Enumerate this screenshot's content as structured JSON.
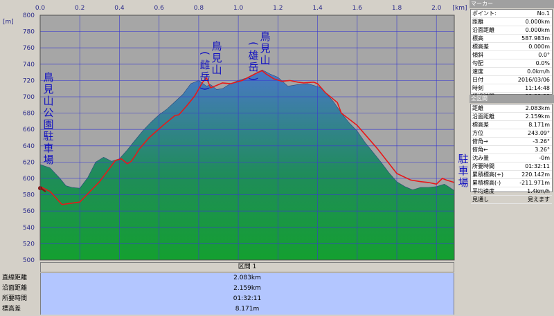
{
  "colors": {
    "plot_bg": "#a6a6a6",
    "grid": "#3a3ad0",
    "fill_top": "#4a78c8",
    "fill_bottom": "#14a030",
    "track": "#e81818",
    "label_text": "#1010c0",
    "stats_bg": "#b3c6ff"
  },
  "chart_data": {
    "type": "area",
    "xlabel": "",
    "ylabel": "",
    "x_unit": "[km]",
    "y_unit": "[m]",
    "xlim": [
      0,
      2.09
    ],
    "ylim": [
      500,
      800
    ],
    "x_ticks": [
      "0.0",
      "0.2",
      "0.4",
      "0.6",
      "0.8",
      "1.0",
      "1.2",
      "1.4",
      "1.6",
      "1.8",
      "2.0"
    ],
    "y_ticks": [
      "500",
      "520",
      "540",
      "560",
      "580",
      "600",
      "620",
      "640",
      "660",
      "680",
      "700",
      "720",
      "740",
      "760",
      "780",
      "800"
    ],
    "grid": true,
    "series": [
      {
        "type": "area",
        "x": [
          0,
          0.05,
          0.1,
          0.13,
          0.16,
          0.2,
          0.24,
          0.28,
          0.32,
          0.36,
          0.4,
          0.44,
          0.48,
          0.52,
          0.56,
          0.6,
          0.64,
          0.68,
          0.72,
          0.76,
          0.8,
          0.84,
          0.86,
          0.89,
          0.92,
          0.96,
          1.0,
          1.04,
          1.08,
          1.12,
          1.16,
          1.2,
          1.25,
          1.3,
          1.35,
          1.38,
          1.42,
          1.48,
          1.52,
          1.56,
          1.6,
          1.64,
          1.68,
          1.72,
          1.76,
          1.8,
          1.84,
          1.88,
          1.92,
          1.96,
          2.0,
          2.04,
          2.06,
          2.09
        ],
        "y": [
          617,
          613,
          600,
          591,
          589,
          588,
          601,
          620,
          626,
          621,
          624,
          635,
          647,
          659,
          669,
          678,
          685,
          694,
          703,
          716,
          720,
          713,
          715,
          709,
          710,
          716,
          720,
          723,
          728,
          733,
          728,
          724,
          713,
          715,
          716,
          714,
          711,
          694,
          680,
          668,
          658,
          644,
          632,
          620,
          607,
          596,
          590,
          586,
          589,
          589,
          590,
          593,
          590,
          585
        ]
      },
      {
        "type": "line",
        "x": [
          0,
          0.05,
          0.11,
          0.2,
          0.3,
          0.38,
          0.41,
          0.44,
          0.46,
          0.48,
          0.5,
          0.55,
          0.62,
          0.68,
          0.7,
          0.74,
          0.78,
          0.82,
          0.84,
          0.86,
          0.88,
          0.92,
          0.96,
          1.02,
          1.06,
          1.1,
          1.12,
          1.14,
          1.18,
          1.22,
          1.26,
          1.3,
          1.33,
          1.38,
          1.4,
          1.44,
          1.5,
          1.52,
          1.6,
          1.7,
          1.8,
          1.87,
          1.92,
          1.96,
          2.0,
          2.03,
          2.05,
          2.09
        ],
        "y": [
          590,
          584,
          568,
          571,
          596,
          622,
          624,
          618,
          621,
          628,
          636,
          650,
          665,
          677,
          678,
          689,
          701,
          718,
          723,
          711,
          713,
          717,
          716,
          720,
          725,
          730,
          732,
          728,
          722,
          719,
          720,
          718,
          717,
          718,
          716,
          705,
          693,
          680,
          665,
          637,
          606,
          598,
          596,
          595,
          593,
          600,
          598,
          595
        ]
      }
    ],
    "annotations": [
      {
        "text": "鳥見山公園駐車場",
        "x": 0.035,
        "y": 683
      },
      {
        "text": "鳥見山(雌岳)",
        "x": 0.84,
        "y": 735
      },
      {
        "text": "鳥見山(雄岳)",
        "x": 1.1,
        "y": 751
      },
      {
        "text": "駐車場",
        "x": 2.06,
        "y": 615
      }
    ],
    "start_marker": {
      "x": 0,
      "y": 587.983
    }
  },
  "section": {
    "title": "区間 1"
  },
  "stats": [
    {
      "label": "直線距離",
      "value": "2.083km"
    },
    {
      "label": "沿面距離",
      "value": "2.159km"
    },
    {
      "label": "所要時間",
      "value": "01:32:11"
    },
    {
      "label": "標高差",
      "value": "8.171m"
    }
  ],
  "side": {
    "marker_title": "マーカー",
    "marker_rows": [
      {
        "label": "ポイント:",
        "value": "No.1"
      },
      {
        "label": "距離",
        "value": "0.000km"
      },
      {
        "label": "沿面距離",
        "value": "0.000km"
      },
      {
        "label": "標高",
        "value": "587.983m"
      },
      {
        "label": "標高差",
        "value": "0.000m"
      },
      {
        "label": "傾斜",
        "value": "0.0°"
      },
      {
        "label": "勾配",
        "value": "0.0%"
      },
      {
        "label": "速度",
        "value": "0.0km/h"
      },
      {
        "label": "日付",
        "value": "2016/03/06"
      },
      {
        "label": "時刻",
        "value": "11:14:48"
      },
      {
        "label": "経過時間",
        "value": "00:00:00"
      }
    ],
    "total_title": "全区間",
    "total_rows": [
      {
        "label": "距離",
        "value": "2.083km"
      },
      {
        "label": "沿面距離",
        "value": "2.159km"
      },
      {
        "label": "標高差",
        "value": "8.171m"
      },
      {
        "label": "方位",
        "value": "243.09°"
      },
      {
        "label": "俯角→",
        "value": "-3.26°"
      },
      {
        "label": "俯角←",
        "value": "3.26°"
      },
      {
        "label": "沈み量",
        "value": "-0m"
      },
      {
        "label": "所要時間",
        "value": "01:32:11"
      },
      {
        "label": "累積標高(+)",
        "value": "220.142m"
      },
      {
        "label": "累積標高(-)",
        "value": "-211.971m"
      },
      {
        "label": "平均速度",
        "value": "1.4km/h"
      },
      {
        "label": "見通し",
        "value": "見えます"
      }
    ]
  }
}
